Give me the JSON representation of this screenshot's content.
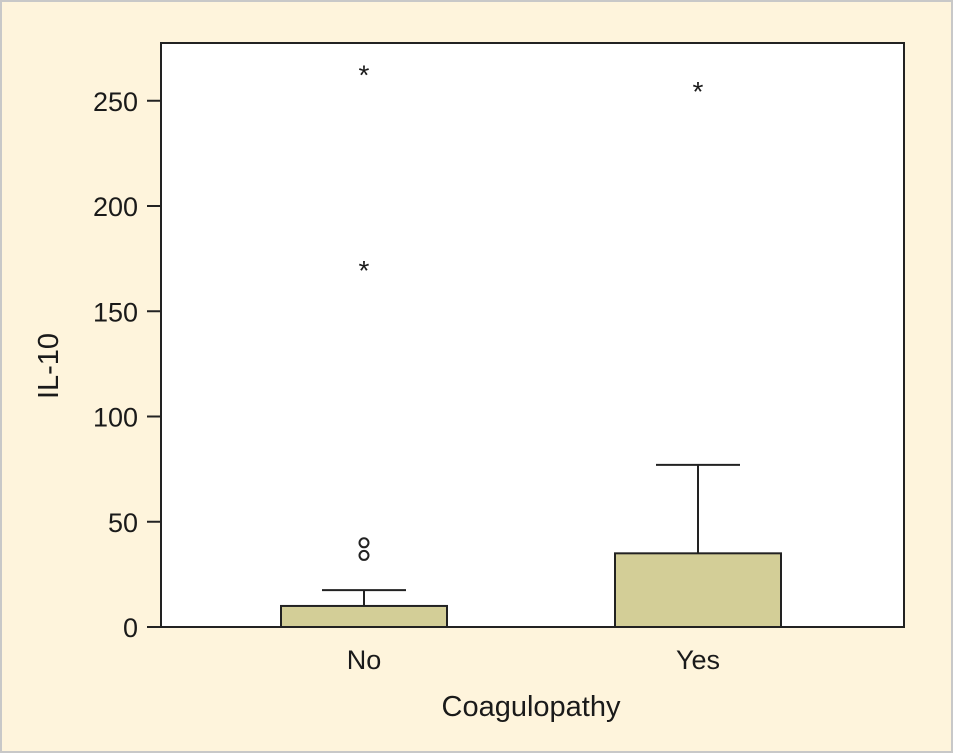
{
  "chart_data": {
    "type": "boxplot",
    "title": "",
    "xlabel": "Coagulopathy",
    "ylabel": "IL-10",
    "ylim": [
      0,
      278
    ],
    "yticks": [
      0,
      50,
      100,
      150,
      200,
      250
    ],
    "grid": false,
    "legend": null,
    "categories": [
      "No",
      "Yes"
    ],
    "boxes": [
      {
        "category": "No",
        "q1": 0,
        "median": 0,
        "q3": 10,
        "whisker_low": 0,
        "whisker_high": 17.5,
        "outliers_circle": [
          34,
          40
        ],
        "outliers_extreme_star": [
          171,
          264
        ]
      },
      {
        "category": "Yes",
        "q1": 0,
        "median": 0,
        "q3": 35,
        "whisker_low": 0,
        "whisker_high": 77,
        "outliers_circle": [],
        "outliers_extreme_star": [
          256
        ]
      }
    ],
    "colors": {
      "box_fill": "#d3ce97",
      "background": "#fef4dc",
      "plot_bg": "#ffffff",
      "stroke": "#222222"
    }
  },
  "axes": {
    "x_title": "Coagulopathy",
    "y_title": "IL-10",
    "x_labels": [
      "No",
      "Yes"
    ],
    "y_labels": [
      "0",
      "50",
      "100",
      "150",
      "200",
      "250"
    ]
  }
}
